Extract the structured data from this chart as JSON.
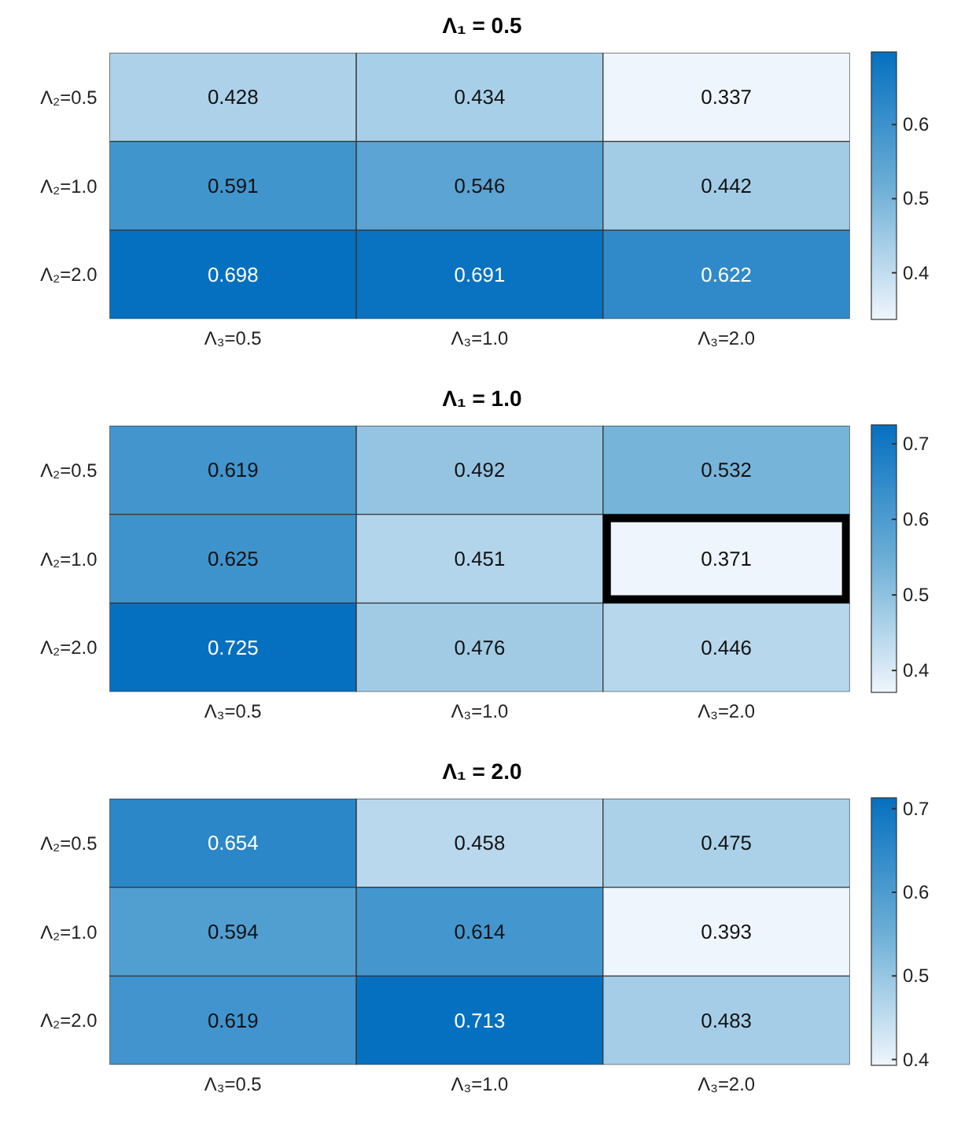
{
  "chart_data": [
    {
      "type": "heatmap",
      "title": "Λ₁ = 0.5",
      "categories": [
        "Λ₃=0.5",
        "Λ₃=1.0",
        "Λ₃=2.0"
      ],
      "y_categories": [
        "Λ₂=0.5",
        "Λ₂=1.0",
        "Λ₂=2.0"
      ],
      "cells": [
        [
          0.428,
          0.434,
          0.337
        ],
        [
          0.591,
          0.546,
          0.442
        ],
        [
          0.698,
          0.691,
          0.622
        ]
      ],
      "clim": [
        0.337,
        0.698
      ],
      "cticks": [
        0.4,
        0.5,
        0.6
      ],
      "data_labels": true
    },
    {
      "type": "heatmap",
      "title": "Λ₁ = 1.0",
      "categories": [
        "Λ₃=0.5",
        "Λ₃=1.0",
        "Λ₃=2.0"
      ],
      "y_categories": [
        "Λ₂=0.5",
        "Λ₂=1.0",
        "Λ₂=2.0"
      ],
      "cells": [
        [
          0.619,
          0.492,
          0.532
        ],
        [
          0.625,
          0.451,
          0.371
        ],
        [
          0.725,
          0.476,
          0.446
        ]
      ],
      "clim": [
        0.371,
        0.725
      ],
      "cticks": [
        0.4,
        0.5,
        0.6,
        0.7
      ],
      "data_labels": true
    },
    {
      "type": "heatmap",
      "title": "Λ₁ = 2.0",
      "categories": [
        "Λ₃=0.5",
        "Λ₃=1.0",
        "Λ₃=2.0"
      ],
      "y_categories": [
        "Λ₂=0.5",
        "Λ₂=1.0",
        "Λ₂=2.0"
      ],
      "cells": [
        [
          0.654,
          0.458,
          0.475
        ],
        [
          0.594,
          0.614,
          0.393
        ],
        [
          0.619,
          0.713,
          0.483
        ]
      ],
      "clim": [
        0.393,
        0.713
      ],
      "cticks": [
        0.4,
        0.5,
        0.6,
        0.7
      ],
      "data_labels": true
    }
  ]
}
